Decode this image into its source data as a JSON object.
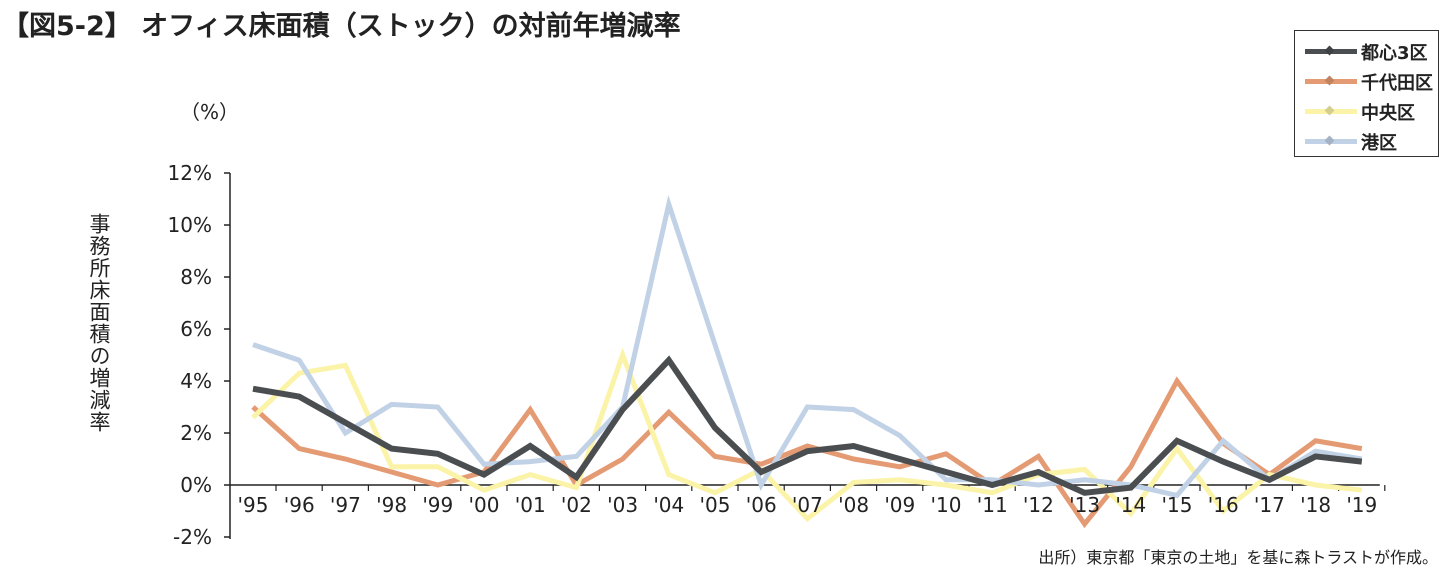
{
  "title": "【図5-2】 オフィス床面積（ストック）の対前年増減率",
  "unit_label": "（%）",
  "source_note": "出所）東京都「東京の土地」を基に森トラストが作成。",
  "chart_data": {
    "type": "line",
    "title": "【図5-2】 オフィス床面積（ストック）の対前年増減率",
    "xlabel": "",
    "ylabel": "事務所床面積の増減率",
    "ylim": [
      -2,
      12
    ],
    "yticks": [
      -2,
      0,
      2,
      4,
      6,
      8,
      10,
      12
    ],
    "ytick_labels": [
      "-2%",
      "0%",
      "2%",
      "4%",
      "6%",
      "8%",
      "10%",
      "12%"
    ],
    "categories": [
      "'95",
      "'96",
      "'97",
      "'98",
      "'99",
      "'00",
      "'01",
      "'02",
      "'03",
      "'04",
      "'05",
      "'06",
      "'07",
      "'08",
      "'09",
      "'10",
      "'11",
      "'12",
      "'13",
      "'14",
      "'15",
      "'16",
      "'17",
      "'18",
      "'19"
    ],
    "legend_position": "top-right",
    "grid": false,
    "series": [
      {
        "name": "千代田区",
        "color": "#e49a72",
        "width": 5,
        "values": [
          3.0,
          1.4,
          1.0,
          0.5,
          0.0,
          0.5,
          2.9,
          0.0,
          1.0,
          2.8,
          1.1,
          0.8,
          1.5,
          1.0,
          0.7,
          1.2,
          0.0,
          1.1,
          -1.5,
          0.7,
          4.0,
          1.6,
          0.4,
          1.7,
          1.4
        ]
      },
      {
        "name": "中央区",
        "color": "#fbf3a8",
        "width": 5,
        "values": [
          2.6,
          4.3,
          4.6,
          0.7,
          0.7,
          -0.2,
          0.4,
          -0.1,
          5.0,
          0.4,
          -0.3,
          0.6,
          -1.3,
          0.1,
          0.2,
          0.0,
          -0.3,
          0.4,
          0.6,
          -1.1,
          1.4,
          -1.0,
          0.4,
          0.0,
          -0.2
        ]
      },
      {
        "name": "港区",
        "color": "#c1d1e6",
        "width": 5,
        "values": [
          5.4,
          4.8,
          2.0,
          3.1,
          3.0,
          0.8,
          0.9,
          1.1,
          3.0,
          10.8,
          5.4,
          0.0,
          3.0,
          2.9,
          1.9,
          0.2,
          0.2,
          0.0,
          0.2,
          0.0,
          -0.4,
          1.7,
          0.2,
          1.3,
          1.0
        ]
      },
      {
        "name": "都心3区",
        "color": "#4a4e51",
        "width": 6,
        "values": [
          3.7,
          3.4,
          2.4,
          1.4,
          1.2,
          0.4,
          1.5,
          0.3,
          2.9,
          4.8,
          2.2,
          0.5,
          1.3,
          1.5,
          1.0,
          0.5,
          0.0,
          0.5,
          -0.3,
          -0.1,
          1.7,
          0.9,
          0.2,
          1.1,
          0.9
        ]
      }
    ],
    "legend_order": [
      "都心3区",
      "千代田区",
      "中央区",
      "港区"
    ]
  }
}
